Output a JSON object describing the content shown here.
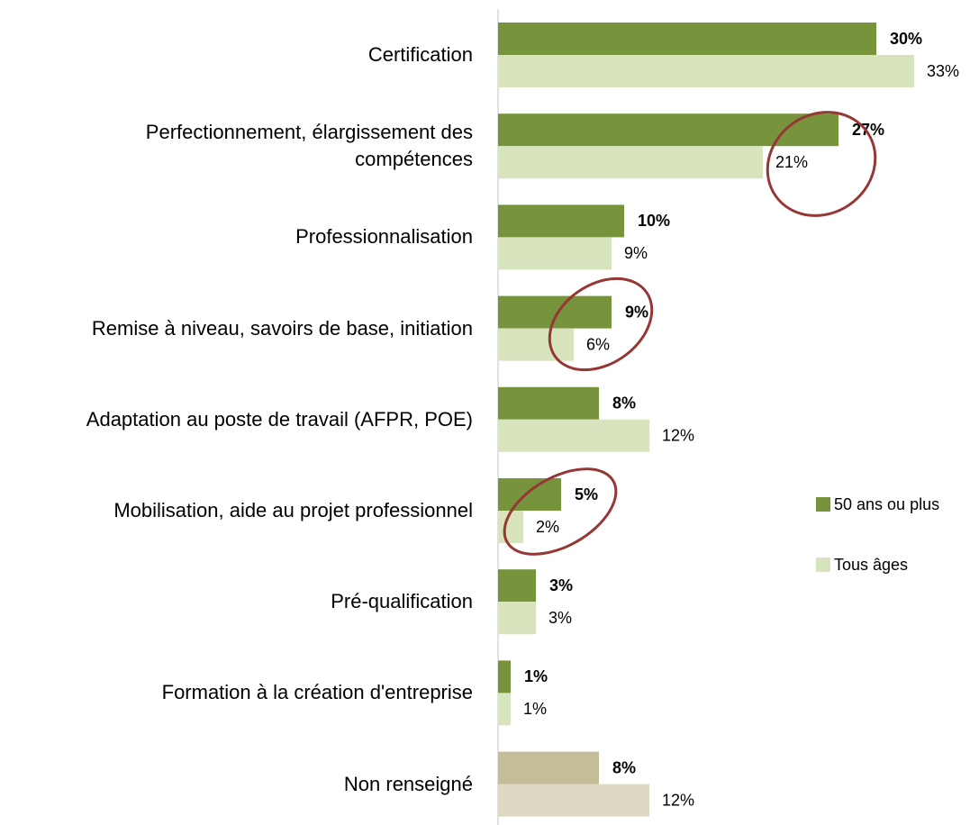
{
  "chart_data": {
    "type": "bar",
    "orientation": "horizontal",
    "categories": [
      "Certification",
      "Perfectionnement, élargissement des\ncompétences",
      "Professionnalisation",
      "Remise à niveau, savoirs de base, initiation",
      "Adaptation au poste de travail (AFPR, POE)",
      "Mobilisation, aide au projet professionnel",
      "Pré-qualification",
      "Formation à la création d'entreprise",
      "Non renseigné"
    ],
    "series": [
      {
        "name": "50 ans ou plus",
        "color": "#77933c",
        "colors": [
          "#77933c",
          "#77933c",
          "#77933c",
          "#77933c",
          "#77933c",
          "#77933c",
          "#77933c",
          "#77933c",
          "#c4bd97"
        ],
        "values": [
          30,
          27,
          10,
          9,
          8,
          5,
          3,
          1,
          8
        ],
        "value_labels": [
          "30%",
          "27%",
          "10%",
          "9%",
          "8%",
          "5%",
          "3%",
          "1%",
          "8%"
        ]
      },
      {
        "name": "Tous âges",
        "color": "#d7e4bd",
        "colors": [
          "#d7e4bd",
          "#d7e4bd",
          "#d7e4bd",
          "#d7e4bd",
          "#d7e4bd",
          "#d7e4bd",
          "#d7e4bd",
          "#d7e4bd",
          "#ddd9c3"
        ],
        "values": [
          33,
          21,
          9,
          6,
          12,
          2,
          3,
          1,
          12
        ],
        "value_labels": [
          "33%",
          "21%",
          "9%",
          "6%",
          "12%",
          "2%",
          "3%",
          "1%",
          "12%"
        ]
      }
    ],
    "legend": "right"
  }
}
